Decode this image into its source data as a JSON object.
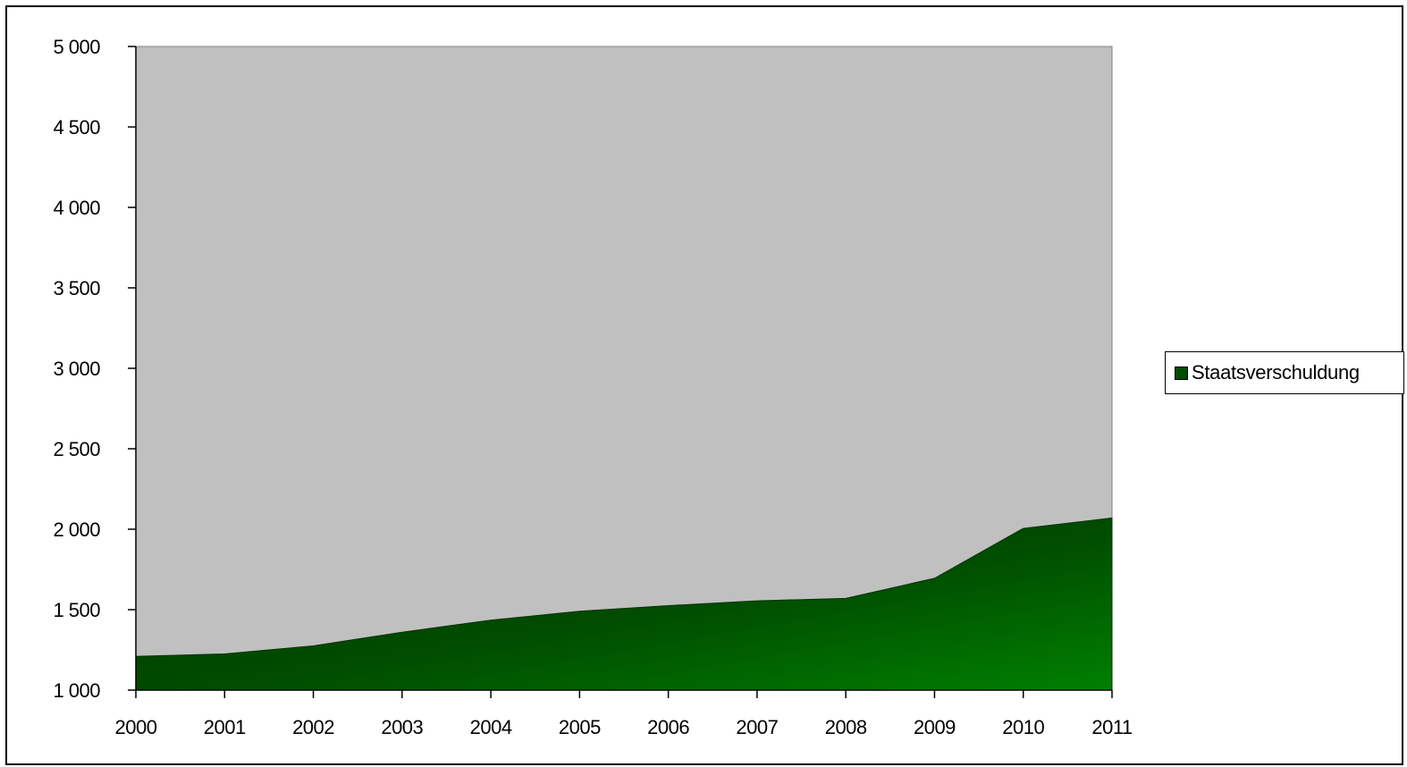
{
  "colors": {
    "plot_background": "#c0c0c0",
    "area_dark": "#003300",
    "area_light": "#008000",
    "legend_swatch": "#004d00",
    "axis": "#000000"
  },
  "chart_data": {
    "type": "area",
    "x": [
      "2000",
      "2001",
      "2002",
      "2003",
      "2004",
      "2005",
      "2006",
      "2007",
      "2008",
      "2009",
      "2010",
      "2011"
    ],
    "series": [
      {
        "name": "Staatsverschuldung",
        "values": [
          1210,
          1225,
          1275,
          1360,
          1435,
          1490,
          1525,
          1555,
          1570,
          1695,
          2005,
          2070
        ]
      }
    ],
    "ylim": [
      1000,
      5000
    ],
    "yticks": [
      1000,
      1500,
      2000,
      2500,
      3000,
      3500,
      4000,
      4500,
      5000
    ],
    "ytick_labels": [
      "1 000",
      "1 500",
      "2 000",
      "2 500",
      "3 000",
      "3 500",
      "4 000",
      "4 500",
      "5 000"
    ],
    "legend_position": "right",
    "grid": false
  }
}
